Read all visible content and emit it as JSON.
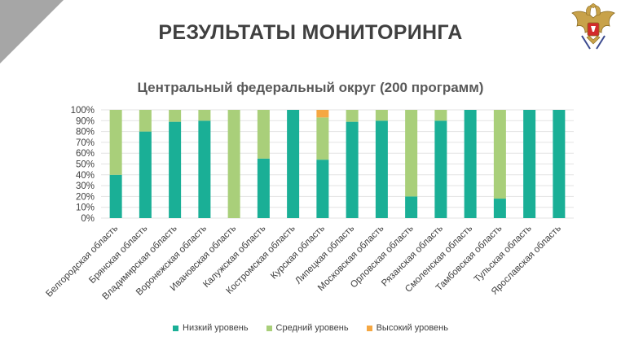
{
  "slide": {
    "title": "РЕЗУЛЬТАТЫ МОНИТОРИНГА"
  },
  "colors": {
    "low": "#1aaf96",
    "medium": "#a9cf7a",
    "high": "#f5a742",
    "grid": "#e3e3e3",
    "text": "#404040"
  },
  "chart_data": {
    "type": "bar",
    "stacked": true,
    "title": "Центральный федеральный округ (200 программ)",
    "xlabel": "",
    "ylabel": "",
    "ylim": [
      0,
      100
    ],
    "y_ticks": [
      "0%",
      "10%",
      "20%",
      "30%",
      "40%",
      "50%",
      "60%",
      "70%",
      "80%",
      "90%",
      "100%"
    ],
    "grid": true,
    "legend_position": "bottom",
    "categories": [
      "Белгородская область",
      "Брянская область",
      "Владимирская область",
      "Воронежская область",
      "Ивановская область",
      "Калужская область",
      "Костромская область",
      "Курская область",
      "Липецкая область",
      "Московская область",
      "Орловская область",
      "Рязанская область",
      "Смоленская область",
      "Тамбовская область",
      "Тульская область",
      "Ярославская область"
    ],
    "series": [
      {
        "name": "Низкий уровень",
        "key": "low",
        "values": [
          40,
          80,
          89,
          90,
          0,
          55,
          100,
          54,
          89,
          90,
          20,
          90,
          100,
          18,
          100,
          100
        ]
      },
      {
        "name": "Средний уровень",
        "key": "medium",
        "values": [
          60,
          20,
          11,
          10,
          100,
          45,
          0,
          39,
          11,
          10,
          80,
          10,
          0,
          82,
          0,
          0
        ]
      },
      {
        "name": "Высокий уровень",
        "key": "high",
        "values": [
          0,
          0,
          0,
          0,
          0,
          0,
          0,
          7,
          0,
          0,
          0,
          0,
          0,
          0,
          0,
          0
        ]
      }
    ]
  }
}
